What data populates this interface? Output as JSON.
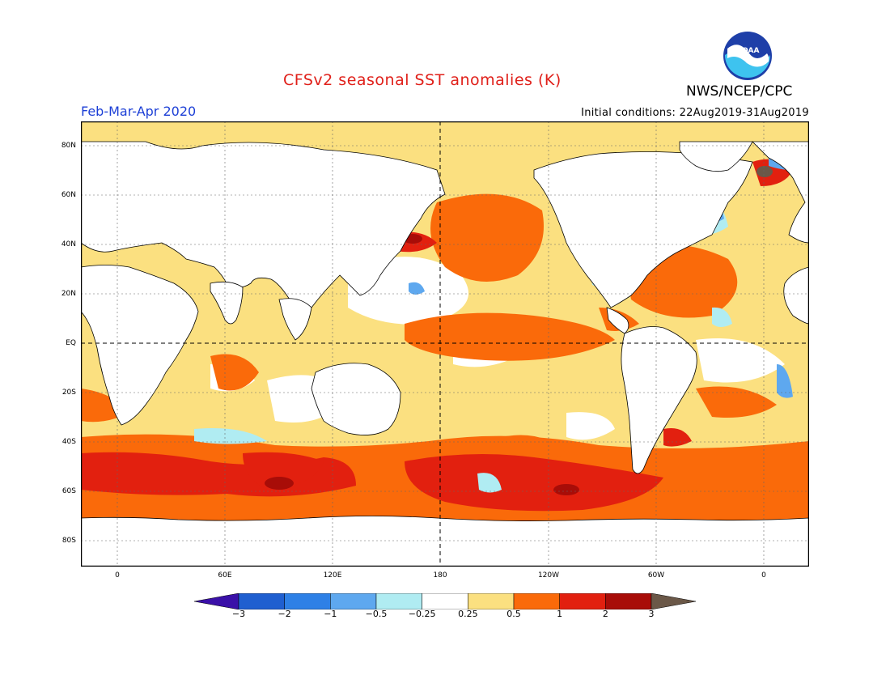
{
  "header": {
    "title": "CFSv2 seasonal SST anomalies (K)",
    "agency": "NWS/NCEP/CPC",
    "period": "Feb-Mar-Apr 2020",
    "initial_conditions": "Initial conditions: 22Aug2019-31Aug2019",
    "logo_text": "NOAA"
  },
  "colors": {
    "title": "#e0201a",
    "period": "#1c3fd6",
    "land": "#ffffff",
    "coast": "#000000"
  },
  "map": {
    "lat_labels": [
      "80N",
      "60N",
      "40N",
      "20N",
      "EQ",
      "20S",
      "40S",
      "60S",
      "80S"
    ],
    "lon_labels": [
      "0",
      "60E",
      "120E",
      "180",
      "120W",
      "60W",
      "0"
    ]
  },
  "legend": {
    "levels": [
      "-3",
      "-2",
      "-1",
      "-0.5",
      "-0.25",
      "0.25",
      "0.5",
      "1",
      "2",
      "3"
    ],
    "colors": [
      "#3a10a8",
      "#1f5fd0",
      "#2e80e6",
      "#5ea8ef",
      "#b0ecf2",
      "#ffffff",
      "#fbe080",
      "#fa6a0a",
      "#e2200f",
      "#a80d08",
      "#6b5848"
    ]
  }
}
